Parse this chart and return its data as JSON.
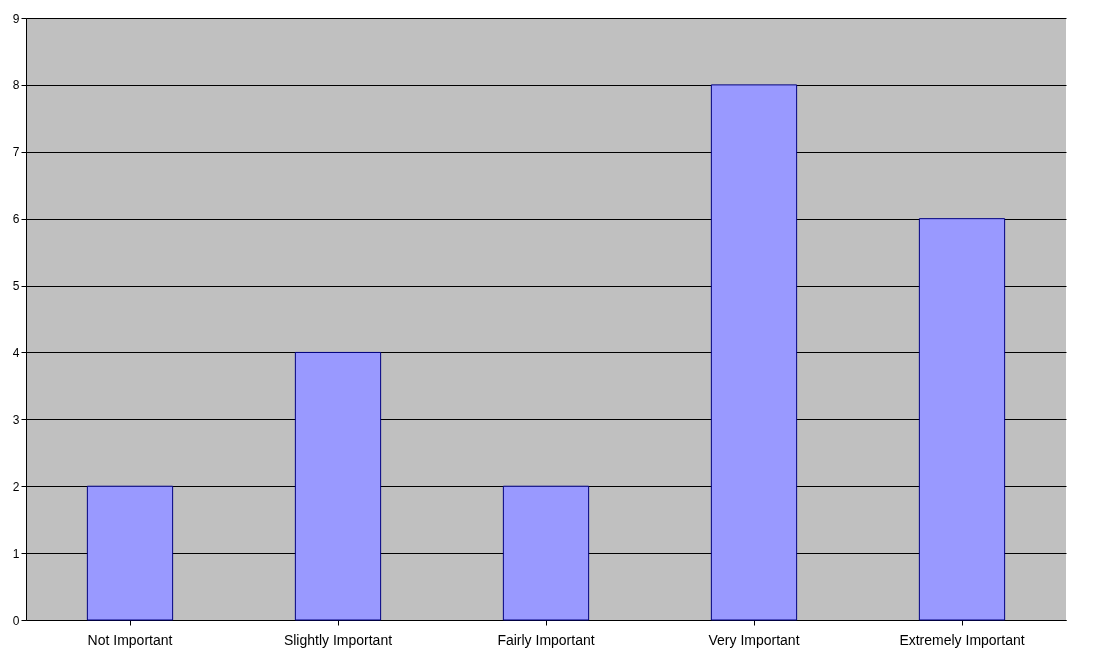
{
  "chart_data": {
    "type": "bar",
    "categories": [
      "Not Important",
      "Slightly Important",
      "Fairly Important",
      "Very Important",
      "Extremely Important"
    ],
    "series": [
      {
        "color": "#9999ff",
        "values": [
          2,
          4,
          2,
          8,
          6
        ]
      }
    ],
    "ylim": [
      0,
      9
    ],
    "yticks": [
      0,
      1,
      2,
      3,
      4,
      5,
      6,
      7,
      8,
      9
    ],
    "grid": "y",
    "legend": false
  }
}
